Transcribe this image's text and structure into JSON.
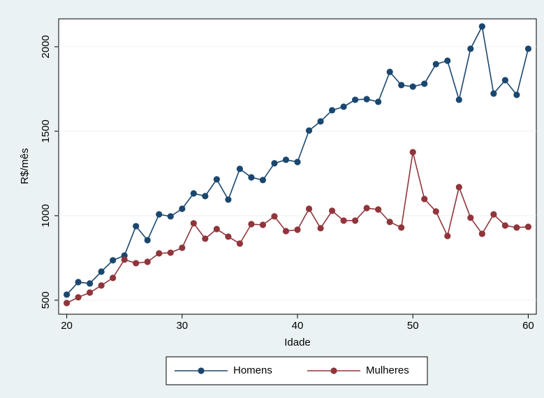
{
  "chart_data": {
    "type": "line",
    "xlabel": "Idade",
    "ylabel": "R$/mês",
    "x": [
      20,
      21,
      22,
      23,
      24,
      25,
      26,
      27,
      28,
      29,
      30,
      31,
      32,
      33,
      34,
      35,
      36,
      37,
      38,
      39,
      40,
      41,
      42,
      43,
      44,
      45,
      46,
      47,
      48,
      49,
      50,
      51,
      52,
      53,
      54,
      55,
      56,
      57,
      58,
      59,
      60
    ],
    "series": [
      {
        "name": "Homens",
        "color": "#1a476f",
        "values": [
          533,
          607,
          599,
          669,
          736,
          764,
          938,
          855,
          1008,
          996,
          1041,
          1132,
          1116,
          1215,
          1095,
          1277,
          1227,
          1211,
          1310,
          1331,
          1318,
          1504,
          1558,
          1624,
          1645,
          1686,
          1690,
          1674,
          1851,
          1773,
          1764,
          1781,
          1897,
          1917,
          1686,
          1988,
          2120,
          1723,
          1802,
          1715,
          1988
        ]
      },
      {
        "name": "Mulheres",
        "color": "#90353b",
        "values": [
          483,
          517,
          545,
          587,
          632,
          740,
          719,
          727,
          777,
          781,
          810,
          955,
          864,
          921,
          876,
          835,
          950,
          946,
          996,
          909,
          917,
          1041,
          926,
          1029,
          971,
          971,
          1045,
          1037,
          963,
          930,
          1376,
          1099,
          1025,
          880,
          1169,
          988,
          893,
          1008,
          942,
          930,
          934
        ]
      }
    ],
    "xlim": [
      19.3,
      60.7
    ],
    "ylim": [
      417,
      2165
    ],
    "xticks": [
      20,
      30,
      40,
      50,
      60
    ],
    "yticks": [
      500,
      1000,
      1500,
      2000
    ],
    "grid": true,
    "legend": "bottom"
  }
}
